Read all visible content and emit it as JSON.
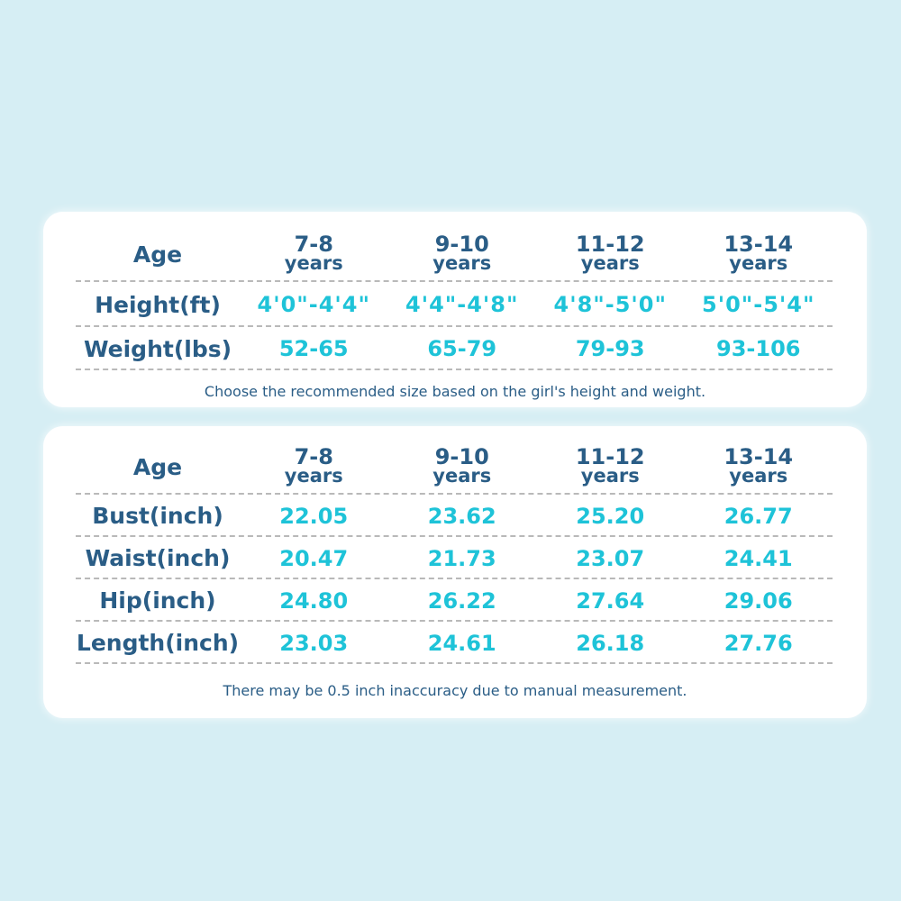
{
  "table1": {
    "header": {
      "label": "Age",
      "columns": [
        {
          "range": "7-8",
          "unit": "years"
        },
        {
          "range": "9-10",
          "unit": "years"
        },
        {
          "range": "11-12",
          "unit": "years"
        },
        {
          "range": "13-14",
          "unit": "years"
        }
      ]
    },
    "rows": [
      {
        "label": "Height(ft)",
        "values": [
          "4'0\"-4'4\"",
          "4'4\"-4'8\"",
          "4'8\"-5'0\"",
          "5'0\"-5'4\""
        ]
      },
      {
        "label": "Weight(lbs)",
        "values": [
          "52-65",
          "65-79",
          "79-93",
          "93-106"
        ]
      }
    ],
    "note": "Choose the recommended size based on the girl's height and weight."
  },
  "table2": {
    "header": {
      "label": "Age",
      "columns": [
        {
          "range": "7-8",
          "unit": "years"
        },
        {
          "range": "9-10",
          "unit": "years"
        },
        {
          "range": "11-12",
          "unit": "years"
        },
        {
          "range": "13-14",
          "unit": "years"
        }
      ]
    },
    "rows": [
      {
        "label": "Bust(inch)",
        "values": [
          "22.05",
          "23.62",
          "25.20",
          "26.77"
        ]
      },
      {
        "label": "Waist(inch)",
        "values": [
          "20.47",
          "21.73",
          "23.07",
          "24.41"
        ]
      },
      {
        "label": "Hip(inch)",
        "values": [
          "24.80",
          "26.22",
          "27.64",
          "29.06"
        ]
      },
      {
        "label": "Length(inch)",
        "values": [
          "23.03",
          "24.61",
          "26.18",
          "27.76"
        ]
      }
    ],
    "note": "There may be 0.5 inch inaccuracy due to manual measurement."
  },
  "colors": {
    "background": "#d6eef4",
    "card": "#ffffff",
    "label_text": "#2a5d86",
    "value_text": "#1ec3d8",
    "separator": "#b9b9b9"
  }
}
